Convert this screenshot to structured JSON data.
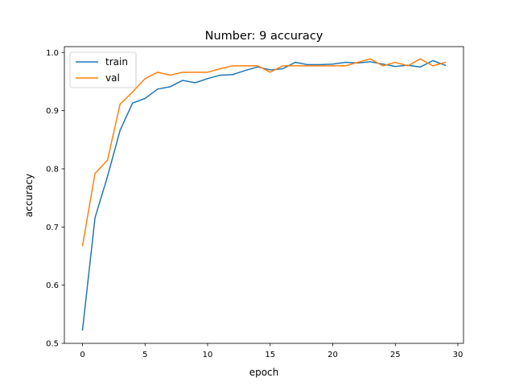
{
  "chart_data": {
    "type": "line",
    "title": "Number: 9 accuracy",
    "xlabel": "epoch",
    "ylabel": "accuracy",
    "xlim": [
      -1.45,
      30.45
    ],
    "ylim": [
      0.5,
      1.01
    ],
    "xticks": [
      0,
      5,
      10,
      15,
      20,
      25,
      30
    ],
    "yticks": [
      0.5,
      0.6,
      0.7,
      0.8,
      0.9,
      1.0
    ],
    "xtick_labels": [
      "0",
      "5",
      "10",
      "15",
      "20",
      "25",
      "30"
    ],
    "ytick_labels": [
      "0.5",
      "0.6",
      "0.7",
      "0.8",
      "0.9",
      "1.0"
    ],
    "grid": false,
    "legend_position": "upper-left",
    "x": [
      0,
      1,
      2,
      3,
      4,
      5,
      6,
      7,
      8,
      9,
      10,
      11,
      12,
      13,
      14,
      15,
      16,
      17,
      18,
      19,
      20,
      21,
      22,
      23,
      24,
      25,
      26,
      27,
      28,
      29
    ],
    "series": [
      {
        "name": "train",
        "color": "#1f77b4",
        "values": [
          0.523,
          0.716,
          0.787,
          0.866,
          0.913,
          0.921,
          0.937,
          0.941,
          0.952,
          0.948,
          0.955,
          0.961,
          0.962,
          0.969,
          0.975,
          0.97,
          0.972,
          0.983,
          0.979,
          0.979,
          0.98,
          0.983,
          0.982,
          0.984,
          0.98,
          0.976,
          0.978,
          0.975,
          0.986,
          0.978
        ]
      },
      {
        "name": "val",
        "color": "#ff7f0e",
        "values": [
          0.668,
          0.792,
          0.815,
          0.911,
          0.932,
          0.955,
          0.966,
          0.961,
          0.966,
          0.966,
          0.966,
          0.972,
          0.977,
          0.977,
          0.977,
          0.966,
          0.977,
          0.977,
          0.977,
          0.977,
          0.977,
          0.977,
          0.983,
          0.989,
          0.977,
          0.983,
          0.977,
          0.989,
          0.977,
          0.983
        ]
      }
    ]
  }
}
